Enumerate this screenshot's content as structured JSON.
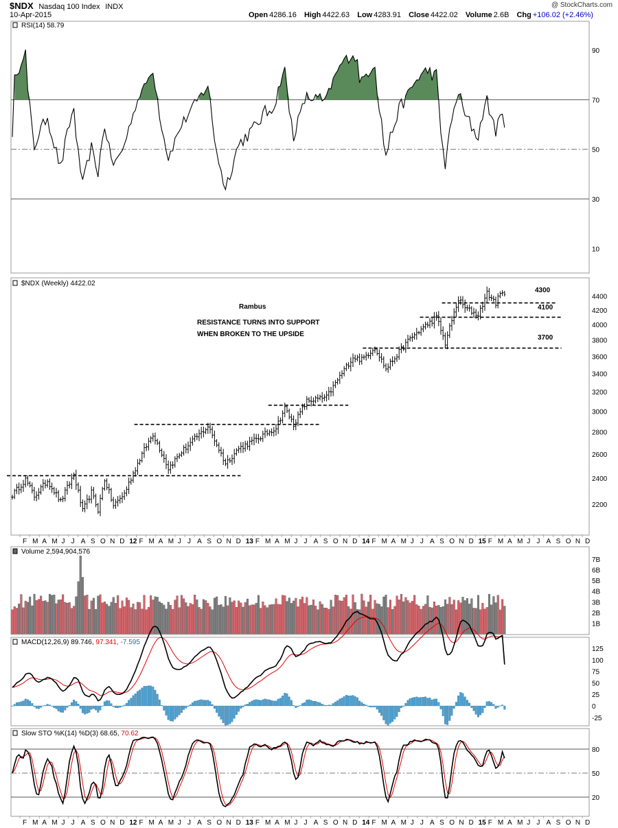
{
  "header": {
    "symbol": "$NDX",
    "name": "Nasdaq 100 Index",
    "exchange": "INDX",
    "date": "10-Apr-2015",
    "open_label": "Open",
    "open": "4286.16",
    "high_label": "High",
    "high": "4422.63",
    "low_label": "Low",
    "low": "4283.91",
    "close_label": "Close",
    "close": "4422.02",
    "volume_label": "Volume",
    "volume": "2.6B",
    "chg_label": "Chg",
    "chg": "+106.02 (+2.46%)",
    "watermark": "@ StockCharts.com"
  },
  "colors": {
    "up": "#d9646b",
    "down": "#808080",
    "macd_hist": "#4a9fd0",
    "rsi_fill": "#5a8a5a",
    "red": "#e00000"
  },
  "panels": {
    "rsi": {
      "label": "RSI(14) 58.79",
      "ticks": [
        "90",
        "70",
        "50",
        "30",
        "10"
      ]
    },
    "price": {
      "label": "$NDX (Weekly) 4422.02",
      "ticks": [
        "4400",
        "4200",
        "4000",
        "3800",
        "3600",
        "3400",
        "3200",
        "3000",
        "2800",
        "2600",
        "2400",
        "2200"
      ]
    },
    "volume": {
      "label": "Volume 2,594,904,576",
      "ticks": [
        "7B",
        "6B",
        "5B",
        "4B",
        "3B",
        "2B",
        "1B"
      ]
    },
    "macd": {
      "label_a": "MACD(12,26,9) 89.746,",
      "label_b": " 97.341,",
      "label_c": " -7.595",
      "ticks": [
        "125",
        "100",
        "75",
        "50",
        "25",
        "0",
        "-25"
      ]
    },
    "sto": {
      "label_a": "Slow STO %K(14) %D(3) 68.65,",
      "label_b": " 70.62",
      "ticks": [
        "80",
        "50",
        "20"
      ]
    }
  },
  "annotations": {
    "author": "Rambus",
    "line1": "RESISTANCE TURNS INTO SUPPORT",
    "line2": "WHEN BROKEN TO THE UPSIDE",
    "level_4300": "4300",
    "level_4100": "4100",
    "level_3700": "3700"
  },
  "months": [
    "F",
    "M",
    "A",
    "M",
    "J",
    "J",
    "A",
    "S",
    "O",
    "N",
    "D",
    "12",
    "F",
    "M",
    "A",
    "M",
    "J",
    "J",
    "A",
    "S",
    "O",
    "N",
    "D",
    "13",
    "F",
    "M",
    "A",
    "M",
    "J",
    "J",
    "A",
    "S",
    "O",
    "N",
    "D",
    "14",
    "F",
    "M",
    "A",
    "M",
    "J",
    "J",
    "A",
    "S",
    "O",
    "N",
    "D",
    "15",
    "F",
    "M",
    "A",
    "M",
    "J",
    "J",
    "A",
    "S",
    "O",
    "N",
    "D"
  ],
  "chart_data": {
    "type": "line",
    "title": "$NDX Nasdaq 100 Index (Weekly)",
    "ylim": [
      2000,
      4550
    ],
    "x_start": "2011-01",
    "x_end": "2015-12",
    "price_key_points": [
      {
        "date": "2011-01-07",
        "close": 2270
      },
      {
        "date": "2011-02-18",
        "close": 2390
      },
      {
        "date": "2011-03-18",
        "close": 2260
      },
      {
        "date": "2011-04-29",
        "close": 2380
      },
      {
        "date": "2011-06-10",
        "close": 2220
      },
      {
        "date": "2011-07-22",
        "close": 2430
      },
      {
        "date": "2011-08-19",
        "close": 2150
      },
      {
        "date": "2011-09-16",
        "close": 2290
      },
      {
        "date": "2011-10-07",
        "close": 2160
      },
      {
        "date": "2011-10-28",
        "close": 2390
      },
      {
        "date": "2011-11-25",
        "close": 2190
      },
      {
        "date": "2011-12-30",
        "close": 2280
      },
      {
        "date": "2012-02-24",
        "close": 2600
      },
      {
        "date": "2012-03-30",
        "close": 2780
      },
      {
        "date": "2012-05-18",
        "close": 2480
      },
      {
        "date": "2012-06-29",
        "close": 2620
      },
      {
        "date": "2012-09-21",
        "close": 2850
      },
      {
        "date": "2012-11-16",
        "close": 2520
      },
      {
        "date": "2012-12-28",
        "close": 2650
      },
      {
        "date": "2013-02-22",
        "close": 2730
      },
      {
        "date": "2013-04-26",
        "close": 2840
      },
      {
        "date": "2013-05-24",
        "close": 3030
      },
      {
        "date": "2013-06-21",
        "close": 2870
      },
      {
        "date": "2013-08-02",
        "close": 3100
      },
      {
        "date": "2013-10-04",
        "close": 3140
      },
      {
        "date": "2013-12-27",
        "close": 3590
      },
      {
        "date": "2014-01-24",
        "close": 3560
      },
      {
        "date": "2014-03-07",
        "close": 3710
      },
      {
        "date": "2014-04-11",
        "close": 3450
      },
      {
        "date": "2014-06-27",
        "close": 3820
      },
      {
        "date": "2014-09-19",
        "close": 4100
      },
      {
        "date": "2014-10-17",
        "close": 3760
      },
      {
        "date": "2014-11-28",
        "close": 4350
      },
      {
        "date": "2014-12-19",
        "close": 4230
      },
      {
        "date": "2015-01-30",
        "close": 4130
      },
      {
        "date": "2015-02-27",
        "close": 4440
      },
      {
        "date": "2015-03-27",
        "close": 4300
      },
      {
        "date": "2015-04-10",
        "close": 4422
      }
    ],
    "horizontal_levels": [
      2420,
      2870,
      3060,
      3700,
      4100,
      4300
    ],
    "rsi_last": 58.79,
    "macd_last": {
      "macd": 89.746,
      "signal": 97.341,
      "hist": -7.595
    },
    "sto_last": {
      "k": 68.65,
      "d": 70.62
    }
  }
}
